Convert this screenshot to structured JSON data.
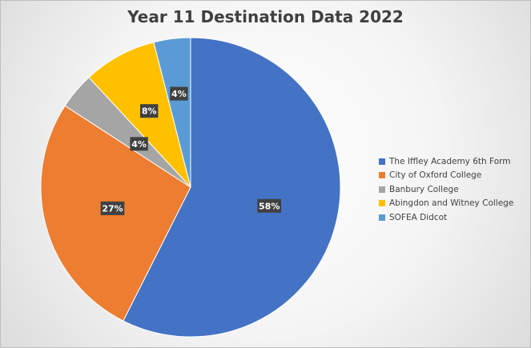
{
  "chart_data": {
    "type": "pie",
    "title": "Year 11 Destination Data 2022",
    "categories": [
      "The Iffley Academy 6th Form",
      "City of Oxford College",
      "Banbury College",
      "Abingdon and Witney College",
      "SOFEA Didcot"
    ],
    "values": [
      58,
      27,
      4,
      8,
      4
    ],
    "data_labels": [
      "58%",
      "27%",
      "4%",
      "8%",
      "4%"
    ],
    "colors": [
      "#4472C4",
      "#ED7D31",
      "#A5A5A5",
      "#FFC000",
      "#5B9BD5"
    ],
    "legend_position": "right"
  }
}
